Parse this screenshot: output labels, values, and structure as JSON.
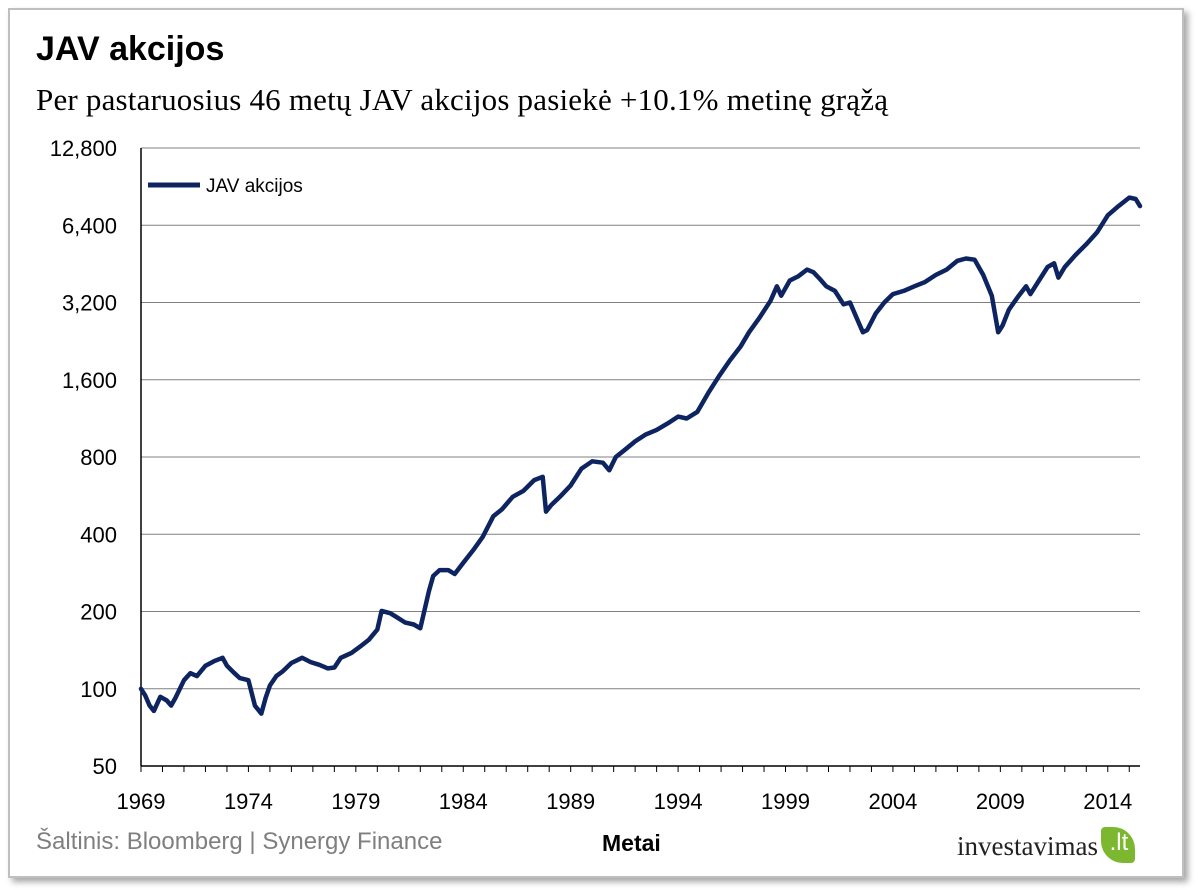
{
  "header": {
    "title": "JAV akcijos",
    "subtitle": "Per pastaruosius  46 metų JAV akcijos pasiekė +10.1% metinę grąžą"
  },
  "footer": {
    "source": "Šaltinis: Bloomberg | Synergy Finance",
    "logo_text": "investavimas",
    "logo_badge": ".lt"
  },
  "colors": {
    "series": "#0d2461",
    "grid": "#808080",
    "logo_green": "#7cb82f"
  },
  "chart_data": {
    "type": "line",
    "title": "JAV akcijos",
    "subtitle": "Per pastaruosius  46 metų JAV akcijos pasiekė +10.1% metinę grąžą",
    "xlabel": "Metai",
    "ylabel": "",
    "yscale": "log2",
    "ylim": [
      50,
      12800
    ],
    "xlim": [
      1969,
      2015.5
    ],
    "y_ticks": [
      50,
      100,
      200,
      400,
      800,
      1600,
      3200,
      6400,
      12800
    ],
    "y_tick_labels": [
      "50",
      "100",
      "200",
      "400",
      "800",
      "1,600",
      "3,200",
      "6,400",
      "12,800"
    ],
    "x_ticks": [
      1969,
      1974,
      1979,
      1984,
      1989,
      1994,
      1999,
      2004,
      2009,
      2014
    ],
    "x_tick_labels": [
      "1969",
      "1974",
      "1979",
      "1984",
      "1989",
      "1994",
      "1999",
      "2004",
      "2009",
      "2014"
    ],
    "grid": true,
    "legend_position": "top-left",
    "series": [
      {
        "name": "JAV akcijos",
        "color": "#0d2461",
        "x": [
          1969.0,
          1969.2,
          1969.4,
          1969.6,
          1969.9,
          1970.2,
          1970.4,
          1970.6,
          1971.0,
          1971.3,
          1971.6,
          1972.0,
          1972.4,
          1972.8,
          1973.0,
          1973.3,
          1973.6,
          1974.0,
          1974.3,
          1974.6,
          1974.8,
          1975.0,
          1975.3,
          1975.6,
          1976.0,
          1976.5,
          1976.9,
          1977.3,
          1977.7,
          1978.0,
          1978.3,
          1978.8,
          1979.2,
          1979.6,
          1980.0,
          1980.2,
          1980.6,
          1980.9,
          1981.3,
          1981.7,
          1982.0,
          1982.4,
          1982.6,
          1982.9,
          1983.3,
          1983.6,
          1984.0,
          1984.5,
          1984.9,
          1985.4,
          1985.8,
          1986.3,
          1986.8,
          1987.3,
          1987.7,
          1987.85,
          1988.1,
          1988.5,
          1989.0,
          1989.5,
          1990.0,
          1990.5,
          1990.8,
          1991.1,
          1991.5,
          1992.0,
          1992.5,
          1993.0,
          1993.5,
          1994.0,
          1994.4,
          1994.9,
          1995.4,
          1995.9,
          1996.4,
          1996.9,
          1997.3,
          1997.8,
          1998.3,
          1998.6,
          1998.8,
          1999.2,
          1999.6,
          2000.0,
          2000.3,
          2000.6,
          2000.9,
          2001.3,
          2001.7,
          2002.0,
          2002.3,
          2002.6,
          2002.8,
          2003.2,
          2003.6,
          2004.0,
          2004.5,
          2005.0,
          2005.5,
          2006.0,
          2006.5,
          2007.0,
          2007.4,
          2007.8,
          2008.2,
          2008.6,
          2008.9,
          2009.1,
          2009.4,
          2009.8,
          2010.2,
          2010.4,
          2010.8,
          2011.2,
          2011.5,
          2011.7,
          2012.0,
          2012.5,
          2013.0,
          2013.5,
          2014.0,
          2014.5,
          2015.0,
          2015.3,
          2015.5
        ],
        "y": [
          100,
          94,
          86,
          82,
          93,
          90,
          86,
          92,
          108,
          115,
          112,
          123,
          128,
          132,
          123,
          116,
          110,
          108,
          86,
          80,
          92,
          103,
          112,
          117,
          126,
          132,
          127,
          124,
          120,
          121,
          132,
          138,
          146,
          155,
          170,
          201,
          197,
          190,
          181,
          178,
          172,
          240,
          275,
          290,
          290,
          280,
          310,
          350,
          390,
          470,
          500,
          560,
          590,
          650,
          670,
          490,
          520,
          560,
          620,
          720,
          770,
          760,
          710,
          800,
          850,
          920,
          980,
          1020,
          1080,
          1150,
          1130,
          1200,
          1420,
          1650,
          1900,
          2150,
          2450,
          2800,
          3250,
          3700,
          3400,
          3900,
          4050,
          4300,
          4200,
          3950,
          3700,
          3550,
          3150,
          3200,
          2800,
          2450,
          2500,
          2900,
          3200,
          3450,
          3550,
          3700,
          3850,
          4100,
          4300,
          4650,
          4750,
          4700,
          4100,
          3400,
          2450,
          2600,
          3000,
          3350,
          3700,
          3450,
          3900,
          4400,
          4550,
          4000,
          4400,
          4900,
          5400,
          6000,
          7000,
          7600,
          8200,
          8100,
          7600
        ]
      }
    ]
  }
}
